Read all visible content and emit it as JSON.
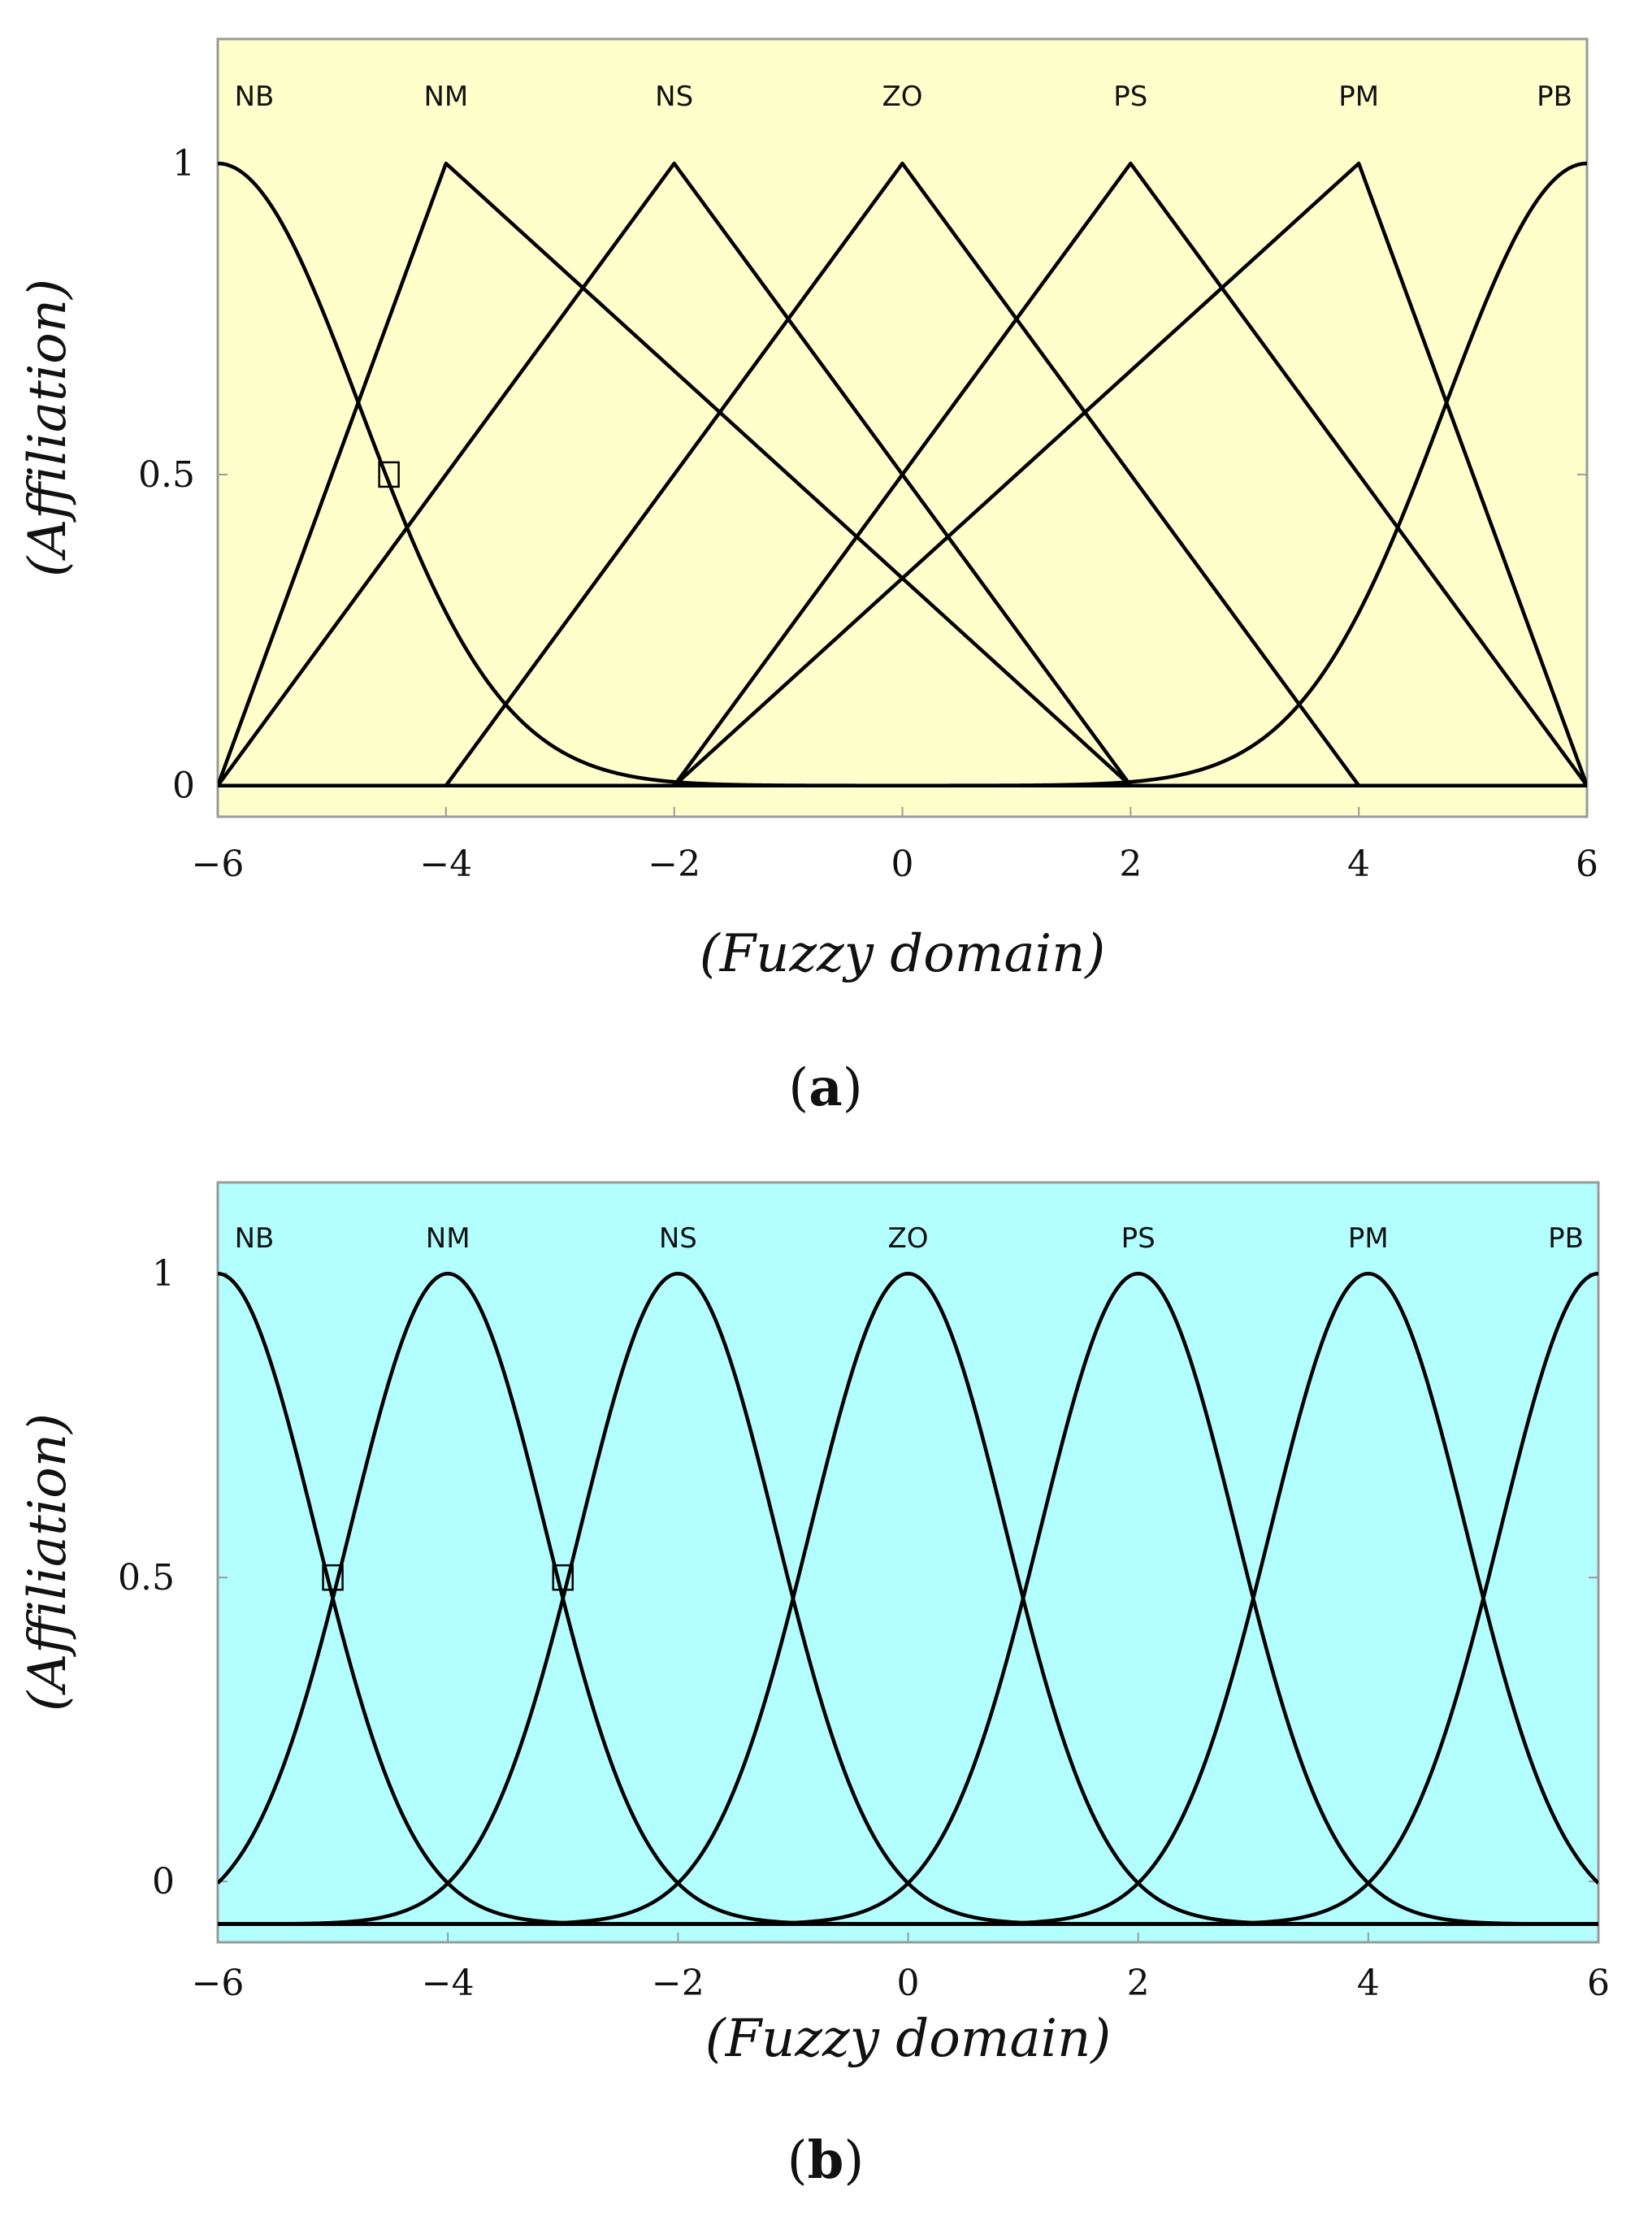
{
  "chart_data": [
    {
      "id": "a",
      "type": "line",
      "panel_label": "a",
      "title": "",
      "xlabel": "Fuzzy domain",
      "ylabel": "Affiliation",
      "xlim": [
        -6,
        6
      ],
      "ylim": [
        -0.05,
        1.2
      ],
      "xticks": [
        "−6",
        "−4",
        "−2",
        "0",
        "2",
        "4",
        "6"
      ],
      "yticks": [
        "0",
        "0.5",
        "1"
      ],
      "background_color": "#ffffcc",
      "grid": false,
      "legend": "none",
      "membership_functions": [
        {
          "name": "NB",
          "shape": "z-shaped (sigmoid)",
          "center": -6,
          "crossover": -4.5
        },
        {
          "name": "NM",
          "shape": "triangle",
          "points": [
            -6,
            -4,
            2
          ]
        },
        {
          "name": "NS",
          "shape": "triangle",
          "points": [
            -6,
            -2,
            2
          ]
        },
        {
          "name": "ZO",
          "shape": "triangle",
          "points": [
            -4,
            0,
            4
          ]
        },
        {
          "name": "PS",
          "shape": "triangle",
          "points": [
            -2,
            2,
            6
          ]
        },
        {
          "name": "PM",
          "shape": "triangle",
          "points": [
            -2,
            4,
            6
          ]
        },
        {
          "name": "PB",
          "shape": "s-shaped (sigmoid)",
          "center": 6,
          "crossover": 4.5
        }
      ],
      "markers": [
        {
          "x": -4.5,
          "y": 0.5
        }
      ]
    },
    {
      "id": "b",
      "type": "line",
      "panel_label": "b",
      "title": "",
      "xlabel": "Fuzzy domain",
      "ylabel": "Affiliation",
      "xlim": [
        -6,
        6
      ],
      "ylim": [
        -0.1,
        1.15
      ],
      "xticks": [
        "−6",
        "−4",
        "−2",
        "0",
        "2",
        "4",
        "6"
      ],
      "yticks": [
        "0",
        "0.5",
        "1"
      ],
      "background_color": "#b3ffff",
      "grid": false,
      "legend": "none",
      "membership_functions": [
        {
          "name": "NB",
          "shape": "gaussian",
          "center": -6,
          "sigma": 0.85
        },
        {
          "name": "NM",
          "shape": "gaussian",
          "center": -4,
          "sigma": 0.85
        },
        {
          "name": "NS",
          "shape": "gaussian",
          "center": -2,
          "sigma": 0.85
        },
        {
          "name": "ZO",
          "shape": "gaussian",
          "center": 0,
          "sigma": 0.85
        },
        {
          "name": "PS",
          "shape": "gaussian",
          "center": 2,
          "sigma": 0.85
        },
        {
          "name": "PM",
          "shape": "gaussian",
          "center": 4,
          "sigma": 0.85
        },
        {
          "name": "PB",
          "shape": "gaussian",
          "center": 6,
          "sigma": 0.85
        }
      ],
      "markers": [
        {
          "x": -5,
          "y": 0.5
        },
        {
          "x": -3,
          "y": 0.5
        }
      ]
    }
  ]
}
